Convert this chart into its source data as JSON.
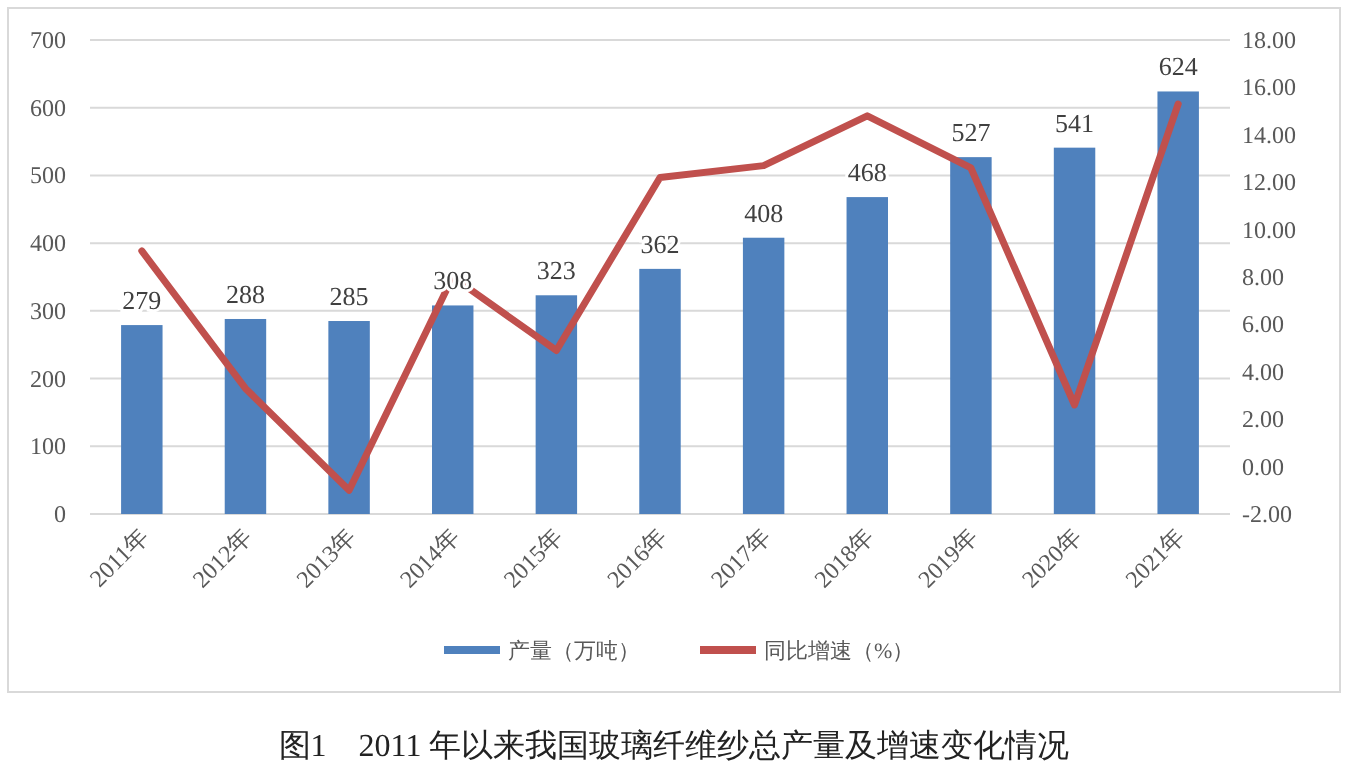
{
  "chart_data": {
    "type": "bar",
    "title": "图1　2011 年以来我国玻璃纤维纱总产量及增速变化情况",
    "categories": [
      "2011年",
      "2012年",
      "2013年",
      "2014年",
      "2015年",
      "2016年",
      "2017年",
      "2018年",
      "2019年",
      "2020年",
      "2021年"
    ],
    "series": [
      {
        "name": "产量（万吨）",
        "color": "#4f81bd",
        "values": [
          279,
          288,
          285,
          308,
          323,
          362,
          408,
          468,
          527,
          541,
          624
        ],
        "data_labels": true
      },
      {
        "name": "同比增速（%）",
        "type": "line",
        "axis": "y2",
        "color": "#c0504d",
        "values": [
          9.1,
          3.3,
          -1.0,
          8.0,
          4.9,
          12.2,
          12.7,
          14.8,
          12.6,
          2.6,
          15.3
        ]
      }
    ],
    "ylim": [
      0,
      700
    ],
    "yticks": [
      0,
      100,
      200,
      300,
      400,
      500,
      600,
      700
    ],
    "y2lim": [
      -2,
      18
    ],
    "y2ticks": [
      {
        "value": -2,
        "label": "-2.00"
      },
      {
        "value": 0,
        "label": "0.00"
      },
      {
        "value": 2,
        "label": "2.00"
      },
      {
        "value": 4,
        "label": "4.00"
      },
      {
        "value": 6,
        "label": "6.00"
      },
      {
        "value": 8,
        "label": "8.00"
      },
      {
        "value": 10,
        "label": "10.00"
      },
      {
        "value": 12,
        "label": "12.00"
      },
      {
        "value": 14,
        "label": "14.00"
      },
      {
        "value": 16,
        "label": "16.00"
      },
      {
        "value": 18,
        "label": "18.00"
      }
    ],
    "grid": "y",
    "legend": "bottom",
    "marker": "none",
    "line_style": "solid"
  }
}
